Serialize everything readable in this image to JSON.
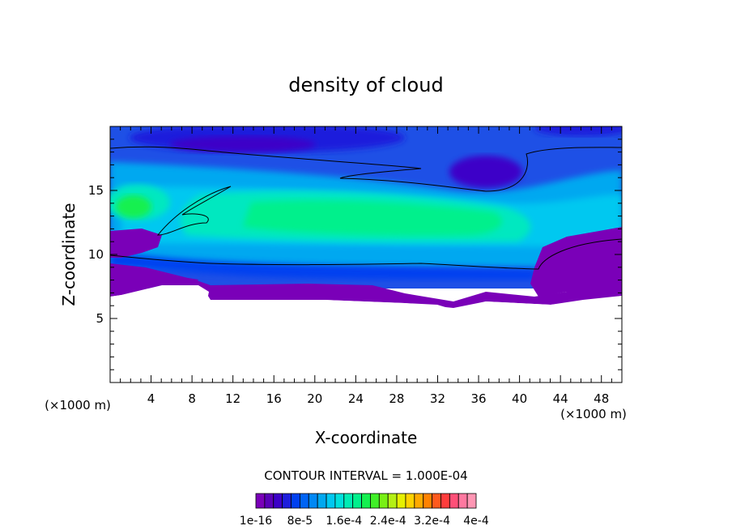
{
  "chart_data": {
    "type": "heatmap",
    "title": "density of cloud",
    "xlabel": "X-coordinate",
    "ylabel": "Z-coordinate",
    "x_units": "(×1000 m)",
    "xlim": [
      0,
      50
    ],
    "ylim": [
      0,
      20
    ],
    "x_ticks": [
      4,
      8,
      12,
      16,
      20,
      24,
      28,
      32,
      36,
      40,
      44,
      48
    ],
    "y_ticks": [
      5,
      10,
      15
    ],
    "contour_interval_text": "CONTOUR INTERVAL = 1.000E-04",
    "colorbar": {
      "labels": [
        "1e-16",
        "8e-5",
        "1.6e-4",
        "2.4e-4",
        "3.2e-4",
        "4e-4"
      ],
      "colors": [
        "#7a00b8",
        "#5a00b8",
        "#3c00c8",
        "#1e1edc",
        "#0040f0",
        "#0064f5",
        "#0088f5",
        "#00a8f0",
        "#00c8f0",
        "#00e0dc",
        "#00ecb4",
        "#00f08c",
        "#14f050",
        "#40f028",
        "#78f014",
        "#b4f014",
        "#e6f000",
        "#ffd200",
        "#ffaa00",
        "#ff8200",
        "#ff5a1e",
        "#ff3c3c",
        "#ff5078",
        "#ff78a0",
        "#ff96b4"
      ]
    }
  }
}
